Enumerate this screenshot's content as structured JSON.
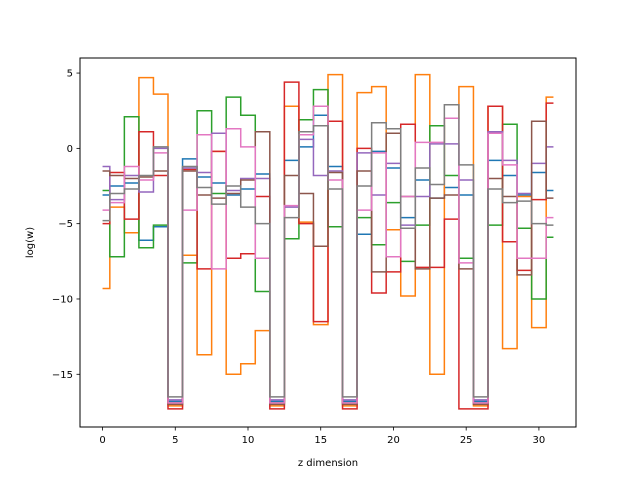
{
  "chart_data": {
    "type": "line",
    "step": "mid",
    "title": "",
    "xlabel": "z dimension",
    "ylabel": "log(w)",
    "xlim": [
      -1.55,
      32.55
    ],
    "ylim": [
      -18.5,
      6.0
    ],
    "xticks": [
      0,
      5,
      10,
      15,
      20,
      25,
      30
    ],
    "yticks": [
      -15,
      -10,
      -5,
      0,
      5
    ],
    "x": [
      0,
      1,
      2,
      3,
      4,
      5,
      6,
      7,
      8,
      9,
      10,
      11,
      12,
      13,
      14,
      15,
      16,
      17,
      18,
      19,
      20,
      21,
      22,
      23,
      24,
      25,
      26,
      27,
      28,
      29,
      30,
      31
    ],
    "grid": false,
    "legend": "none",
    "series": [
      {
        "color": "#1f77b4",
        "values": [
          -3.1,
          -2.5,
          -2.3,
          -6.1,
          -5.2,
          -16.8,
          -0.7,
          -1.9,
          -2.3,
          -3.1,
          -2.7,
          -1.7,
          -16.8,
          -0.8,
          0.1,
          2.2,
          -1.2,
          -16.8,
          -5.7,
          -0.2,
          -1.3,
          -4.6,
          -2.1,
          -3.3,
          -2.6,
          -3.1,
          -16.8,
          -0.8,
          -1.8,
          -3.1,
          -1.6,
          -2.8
        ]
      },
      {
        "color": "#ff7f0e",
        "values": [
          -9.3,
          -3.9,
          -5.6,
          4.7,
          3.6,
          -17.1,
          -7.1,
          -13.7,
          -0.2,
          -15.0,
          -14.3,
          -12.1,
          -17.1,
          2.8,
          -4.9,
          -11.7,
          4.9,
          -17.1,
          3.7,
          4.1,
          -5.4,
          -9.8,
          4.9,
          -15.0,
          2.0,
          4.1,
          -17.1,
          2.8,
          -13.3,
          -3.2,
          -11.9,
          3.4
        ]
      },
      {
        "color": "#2ca02c",
        "values": [
          -2.8,
          -7.2,
          2.1,
          -6.6,
          -5.1,
          -16.9,
          -7.6,
          2.5,
          -3.0,
          3.4,
          2.2,
          -9.5,
          -16.9,
          -6.0,
          1.9,
          3.9,
          -5.2,
          -16.9,
          -4.6,
          -6.4,
          -3.6,
          -7.5,
          -5.1,
          1.5,
          -1.8,
          -7.3,
          -16.9,
          -5.1,
          1.6,
          -5.3,
          -10.0,
          -5.9
        ]
      },
      {
        "color": "#d62728",
        "values": [
          -5.0,
          -1.6,
          -4.7,
          1.1,
          -1.8,
          -17.3,
          -1.4,
          -8.0,
          -0.2,
          -7.3,
          -7.0,
          -3.2,
          -17.3,
          4.4,
          -5.0,
          -11.5,
          1.8,
          -17.3,
          0.0,
          -9.6,
          -8.2,
          1.6,
          -7.9,
          -7.9,
          -4.7,
          -17.3,
          -17.3,
          2.8,
          -6.2,
          -8.1,
          -3.4,
          3.0
        ]
      },
      {
        "color": "#9467bd",
        "values": [
          -1.2,
          -3.4,
          -1.8,
          -2.9,
          0.0,
          -16.7,
          -1.3,
          -1.6,
          1.0,
          -2.8,
          -2.0,
          -2.0,
          -16.7,
          -3.9,
          0.6,
          -1.8,
          -1.5,
          -16.7,
          -0.3,
          -3.1,
          -1.0,
          -5.1,
          -3.2,
          0.3,
          0.3,
          -2.1,
          -16.7,
          1.1,
          -0.8,
          -3.0,
          -1.0,
          0.1
        ]
      },
      {
        "color": "#8c564b",
        "values": [
          -1.5,
          -1.8,
          -2.0,
          -1.9,
          -1.5,
          -17.0,
          -1.5,
          -3.1,
          -3.3,
          -3.0,
          -2.1,
          1.1,
          -17.0,
          -1.8,
          -3.0,
          -6.5,
          -1.6,
          -17.0,
          -1.5,
          -8.2,
          1.0,
          -3.2,
          -8.0,
          -3.3,
          -3.1,
          -8.0,
          -17.0,
          -2.0,
          -3.2,
          -8.4,
          1.8,
          -3.3
        ]
      },
      {
        "color": "#e377c2",
        "values": [
          -4.1,
          -3.6,
          -1.2,
          -2.1,
          -0.3,
          -16.9,
          -4.1,
          0.9,
          -8.0,
          1.3,
          0.1,
          -7.3,
          -16.9,
          -3.8,
          0.9,
          2.8,
          -2.1,
          -16.9,
          -4.1,
          -0.3,
          -7.2,
          -3.2,
          0.4,
          0.4,
          2.0,
          -7.6,
          -16.9,
          1.0,
          -1.1,
          -7.3,
          -7.3,
          -4.6
        ]
      },
      {
        "color": "#7f7f7f",
        "values": [
          -4.8,
          -3.0,
          -2.7,
          -1.8,
          0.1,
          -16.5,
          -1.2,
          -2.6,
          -3.7,
          -2.5,
          -3.9,
          -5.0,
          -16.5,
          -4.6,
          1.1,
          1.5,
          -2.7,
          -16.5,
          -2.5,
          1.7,
          1.3,
          -5.3,
          -1.3,
          -2.4,
          2.9,
          -1.1,
          -16.5,
          -2.7,
          -3.6,
          -3.5,
          -5.0,
          -5.1
        ]
      }
    ]
  }
}
